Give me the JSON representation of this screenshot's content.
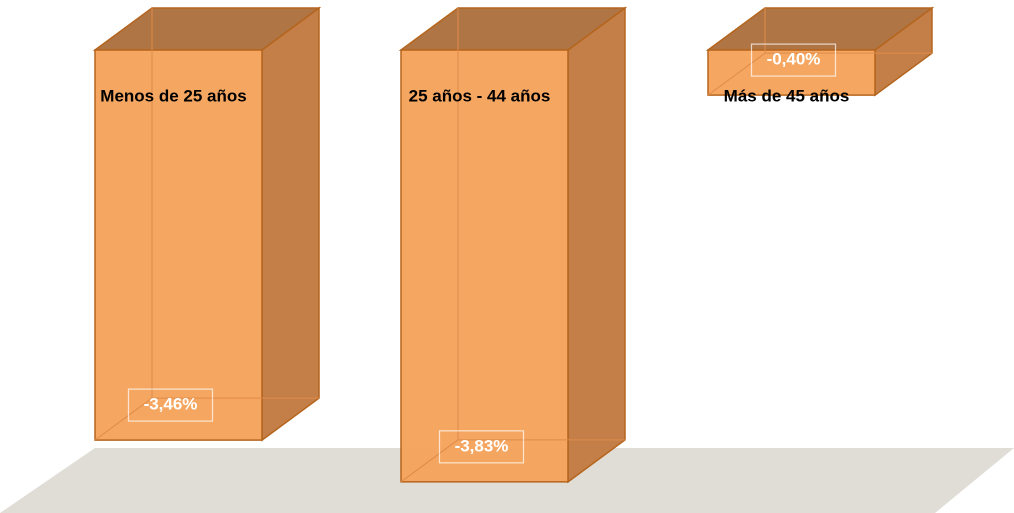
{
  "chart_data": {
    "type": "bar3d",
    "categories": [
      "Menos de 25 años",
      "25 años - 44 años",
      "Más de 45 años"
    ],
    "values": [
      -3.46,
      -3.83,
      -0.4
    ],
    "value_labels": [
      "-3,46%",
      "-3,83%",
      "-0,40%"
    ],
    "color": "#f4a25a",
    "ylim": [
      -4,
      0
    ]
  }
}
